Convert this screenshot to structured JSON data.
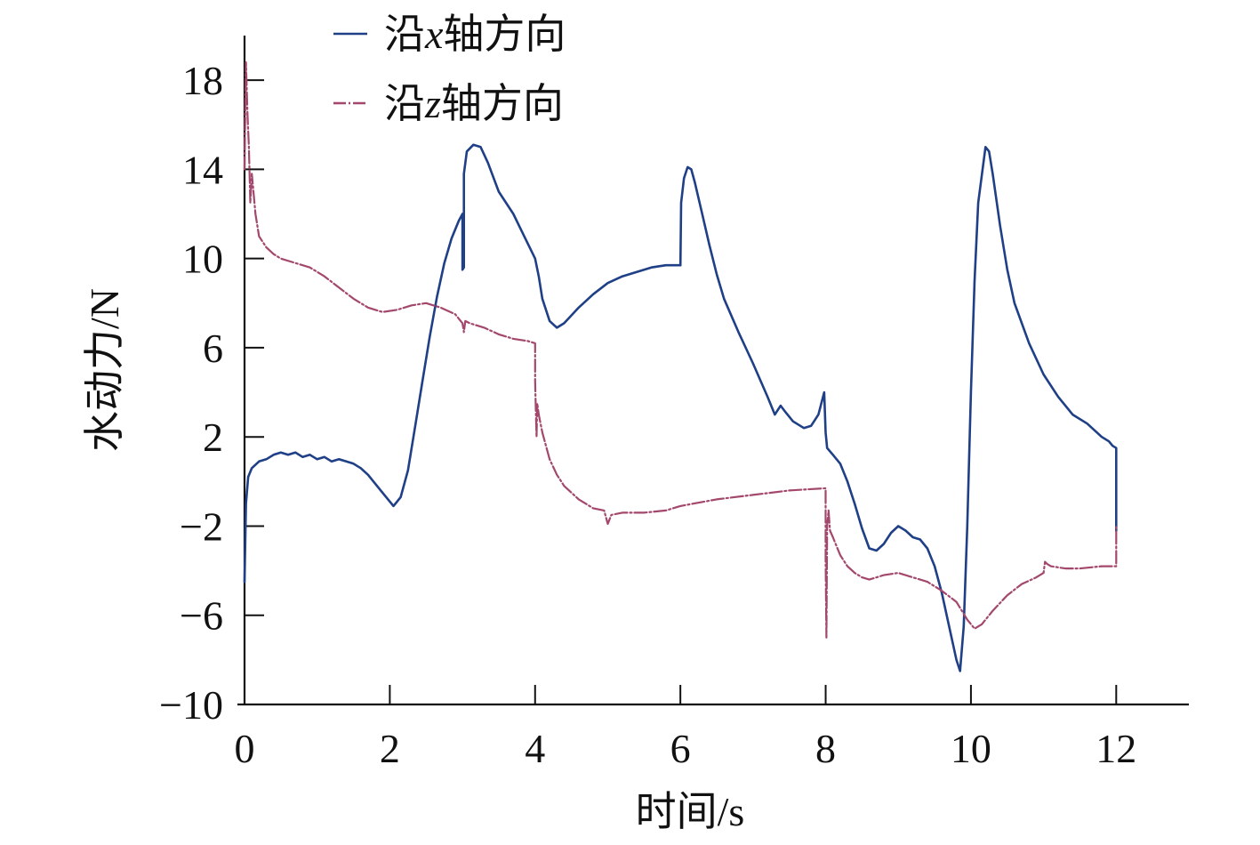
{
  "chart_data": {
    "type": "line",
    "xlabel": "时间/s",
    "ylabel": "水动力/N",
    "xlim": [
      0,
      13
    ],
    "ylim": [
      -10,
      20
    ],
    "xticks": [
      "0",
      "2",
      "4",
      "6",
      "8",
      "10",
      "12"
    ],
    "yticks": [
      "−10",
      "−6",
      "−2",
      "2",
      "6",
      "10",
      "14",
      "18"
    ],
    "grid": false,
    "legend_position": "top-left",
    "series": [
      {
        "name": "沿x轴方向",
        "legend_italic": "x",
        "color": "#1f3f86",
        "dash": "solid",
        "points": [
          [
            0.0,
            -4.5
          ],
          [
            0.02,
            -1.0
          ],
          [
            0.05,
            0.2
          ],
          [
            0.1,
            0.6
          ],
          [
            0.2,
            0.9
          ],
          [
            0.3,
            1.0
          ],
          [
            0.4,
            1.2
          ],
          [
            0.5,
            1.3
          ],
          [
            0.6,
            1.2
          ],
          [
            0.7,
            1.3
          ],
          [
            0.8,
            1.1
          ],
          [
            0.9,
            1.2
          ],
          [
            1.0,
            1.0
          ],
          [
            1.1,
            1.1
          ],
          [
            1.2,
            0.9
          ],
          [
            1.3,
            1.0
          ],
          [
            1.4,
            0.9
          ],
          [
            1.5,
            0.8
          ],
          [
            1.6,
            0.6
          ],
          [
            1.7,
            0.3
          ],
          [
            1.8,
            -0.1
          ],
          [
            1.9,
            -0.5
          ],
          [
            2.0,
            -0.9
          ],
          [
            2.05,
            -1.1
          ],
          [
            2.15,
            -0.7
          ],
          [
            2.25,
            0.5
          ],
          [
            2.35,
            2.5
          ],
          [
            2.45,
            4.5
          ],
          [
            2.55,
            6.5
          ],
          [
            2.65,
            8.3
          ],
          [
            2.75,
            9.8
          ],
          [
            2.85,
            10.9
          ],
          [
            2.95,
            11.7
          ],
          [
            3.0,
            12.0
          ],
          [
            3.0,
            9.5
          ],
          [
            3.02,
            9.6
          ],
          [
            3.02,
            13.8
          ],
          [
            3.06,
            14.8
          ],
          [
            3.15,
            15.1
          ],
          [
            3.25,
            15.0
          ],
          [
            3.35,
            14.3
          ],
          [
            3.5,
            13.0
          ],
          [
            3.7,
            12.0
          ],
          [
            3.85,
            11.0
          ],
          [
            4.0,
            10.0
          ],
          [
            4.05,
            9.2
          ],
          [
            4.1,
            8.2
          ],
          [
            4.2,
            7.2
          ],
          [
            4.3,
            6.9
          ],
          [
            4.4,
            7.1
          ],
          [
            4.6,
            7.8
          ],
          [
            4.8,
            8.4
          ],
          [
            5.0,
            8.9
          ],
          [
            5.2,
            9.2
          ],
          [
            5.4,
            9.4
          ],
          [
            5.6,
            9.6
          ],
          [
            5.8,
            9.7
          ],
          [
            5.95,
            9.7
          ],
          [
            6.0,
            9.7
          ],
          [
            6.01,
            12.5
          ],
          [
            6.05,
            13.6
          ],
          [
            6.1,
            14.1
          ],
          [
            6.15,
            14.0
          ],
          [
            6.2,
            13.4
          ],
          [
            6.3,
            12.0
          ],
          [
            6.4,
            10.6
          ],
          [
            6.5,
            9.3
          ],
          [
            6.6,
            8.2
          ],
          [
            6.8,
            6.7
          ],
          [
            7.0,
            5.3
          ],
          [
            7.2,
            3.8
          ],
          [
            7.3,
            3.0
          ],
          [
            7.38,
            3.4
          ],
          [
            7.45,
            3.1
          ],
          [
            7.55,
            2.7
          ],
          [
            7.7,
            2.4
          ],
          [
            7.8,
            2.5
          ],
          [
            7.9,
            3.0
          ],
          [
            7.98,
            4.0
          ],
          [
            8.0,
            2.2
          ],
          [
            8.02,
            1.5
          ],
          [
            8.1,
            1.2
          ],
          [
            8.2,
            0.8
          ],
          [
            8.3,
            0.0
          ],
          [
            8.4,
            -1.0
          ],
          [
            8.5,
            -2.1
          ],
          [
            8.6,
            -3.0
          ],
          [
            8.7,
            -3.1
          ],
          [
            8.8,
            -2.8
          ],
          [
            8.9,
            -2.3
          ],
          [
            9.0,
            -2.0
          ],
          [
            9.1,
            -2.2
          ],
          [
            9.2,
            -2.5
          ],
          [
            9.3,
            -2.6
          ],
          [
            9.4,
            -3.0
          ],
          [
            9.5,
            -3.8
          ],
          [
            9.6,
            -5.0
          ],
          [
            9.7,
            -6.5
          ],
          [
            9.8,
            -8.0
          ],
          [
            9.85,
            -8.5
          ],
          [
            9.9,
            -6.5
          ],
          [
            9.95,
            -2.0
          ],
          [
            10.0,
            4.0
          ],
          [
            10.05,
            9.0
          ],
          [
            10.1,
            12.5
          ],
          [
            10.2,
            15.0
          ],
          [
            10.25,
            14.8
          ],
          [
            10.3,
            13.8
          ],
          [
            10.4,
            11.5
          ],
          [
            10.5,
            9.5
          ],
          [
            10.6,
            8.0
          ],
          [
            10.8,
            6.2
          ],
          [
            11.0,
            4.8
          ],
          [
            11.2,
            3.8
          ],
          [
            11.4,
            3.0
          ],
          [
            11.6,
            2.6
          ],
          [
            11.8,
            2.0
          ],
          [
            11.9,
            1.8
          ],
          [
            11.95,
            1.6
          ],
          [
            12.0,
            1.5
          ],
          [
            12.0,
            -2.2
          ]
        ]
      },
      {
        "name": "沿z轴方向",
        "legend_italic": "z",
        "color": "#a3486c",
        "dash": "dashdot",
        "points": [
          [
            0.0,
            14.0
          ],
          [
            0.02,
            18.8
          ],
          [
            0.04,
            16.5
          ],
          [
            0.06,
            15.0
          ],
          [
            0.08,
            12.5
          ],
          [
            0.1,
            13.8
          ],
          [
            0.15,
            12.0
          ],
          [
            0.2,
            11.0
          ],
          [
            0.3,
            10.5
          ],
          [
            0.4,
            10.2
          ],
          [
            0.5,
            10.0
          ],
          [
            0.7,
            9.8
          ],
          [
            0.9,
            9.6
          ],
          [
            1.1,
            9.2
          ],
          [
            1.3,
            8.7
          ],
          [
            1.5,
            8.2
          ],
          [
            1.7,
            7.8
          ],
          [
            1.9,
            7.6
          ],
          [
            2.1,
            7.7
          ],
          [
            2.3,
            7.9
          ],
          [
            2.5,
            8.0
          ],
          [
            2.7,
            7.8
          ],
          [
            2.9,
            7.5
          ],
          [
            3.0,
            7.1
          ],
          [
            3.02,
            6.7
          ],
          [
            3.04,
            7.2
          ],
          [
            3.1,
            7.1
          ],
          [
            3.3,
            6.9
          ],
          [
            3.5,
            6.6
          ],
          [
            3.7,
            6.4
          ],
          [
            3.9,
            6.3
          ],
          [
            4.0,
            6.2
          ],
          [
            4.0,
            4.5
          ],
          [
            4.01,
            3.2
          ],
          [
            4.02,
            2.0
          ],
          [
            4.03,
            3.5
          ],
          [
            4.05,
            3.0
          ],
          [
            4.1,
            2.2
          ],
          [
            4.2,
            1.0
          ],
          [
            4.3,
            0.3
          ],
          [
            4.4,
            -0.2
          ],
          [
            4.6,
            -0.8
          ],
          [
            4.8,
            -1.2
          ],
          [
            4.95,
            -1.3
          ],
          [
            5.0,
            -1.9
          ],
          [
            5.05,
            -1.5
          ],
          [
            5.2,
            -1.4
          ],
          [
            5.5,
            -1.4
          ],
          [
            5.8,
            -1.3
          ],
          [
            6.0,
            -1.1
          ],
          [
            6.5,
            -0.8
          ],
          [
            7.0,
            -0.6
          ],
          [
            7.5,
            -0.4
          ],
          [
            8.0,
            -0.3
          ],
          [
            8.0,
            -3.5
          ],
          [
            8.01,
            -7.0
          ],
          [
            8.02,
            -2.0
          ],
          [
            8.04,
            -1.3
          ],
          [
            8.06,
            -2.2
          ],
          [
            8.1,
            -2.5
          ],
          [
            8.2,
            -3.3
          ],
          [
            8.3,
            -3.8
          ],
          [
            8.4,
            -4.1
          ],
          [
            8.5,
            -4.3
          ],
          [
            8.6,
            -4.4
          ],
          [
            8.8,
            -4.2
          ],
          [
            9.0,
            -4.1
          ],
          [
            9.2,
            -4.3
          ],
          [
            9.4,
            -4.5
          ],
          [
            9.6,
            -4.9
          ],
          [
            9.8,
            -5.4
          ],
          [
            9.95,
            -6.2
          ],
          [
            10.05,
            -6.6
          ],
          [
            10.15,
            -6.4
          ],
          [
            10.3,
            -5.8
          ],
          [
            10.5,
            -5.1
          ],
          [
            10.7,
            -4.6
          ],
          [
            10.9,
            -4.3
          ],
          [
            11.0,
            -4.1
          ],
          [
            11.02,
            -3.6
          ],
          [
            11.05,
            -3.7
          ],
          [
            11.1,
            -3.8
          ],
          [
            11.3,
            -3.9
          ],
          [
            11.5,
            -3.9
          ],
          [
            11.8,
            -3.8
          ],
          [
            12.0,
            -3.8
          ],
          [
            12.0,
            -2.0
          ]
        ]
      }
    ]
  }
}
